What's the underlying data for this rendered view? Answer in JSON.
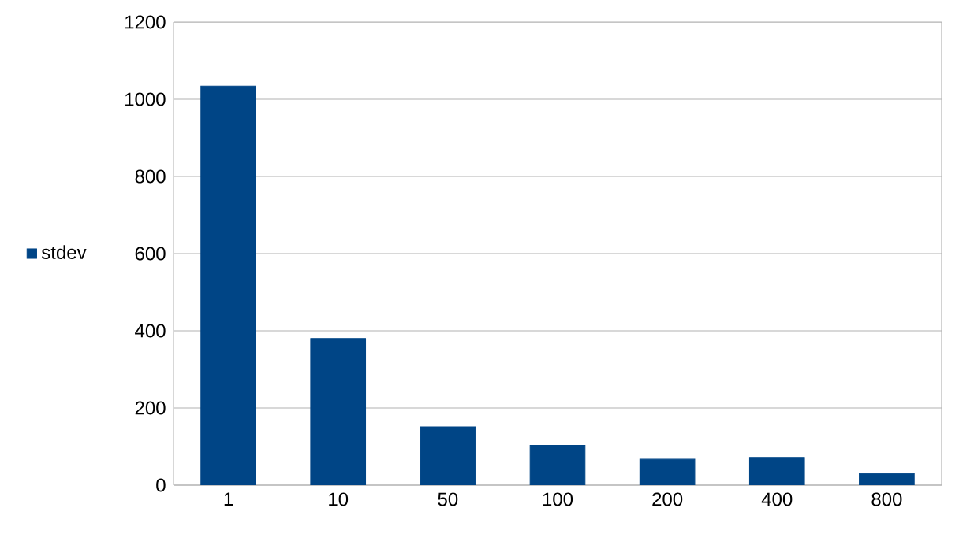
{
  "chart_data": {
    "type": "bar",
    "categories": [
      "1",
      "10",
      "50",
      "100",
      "200",
      "400",
      "800"
    ],
    "series": [
      {
        "name": "stdev",
        "color": "#004586",
        "values": [
          1034,
          380,
          151,
          103,
          67,
          72,
          30
        ]
      }
    ],
    "ylim": [
      0,
      1200
    ],
    "yticks": [
      0,
      200,
      400,
      600,
      800,
      1000,
      1200
    ],
    "grid": "y",
    "legend": "left"
  }
}
